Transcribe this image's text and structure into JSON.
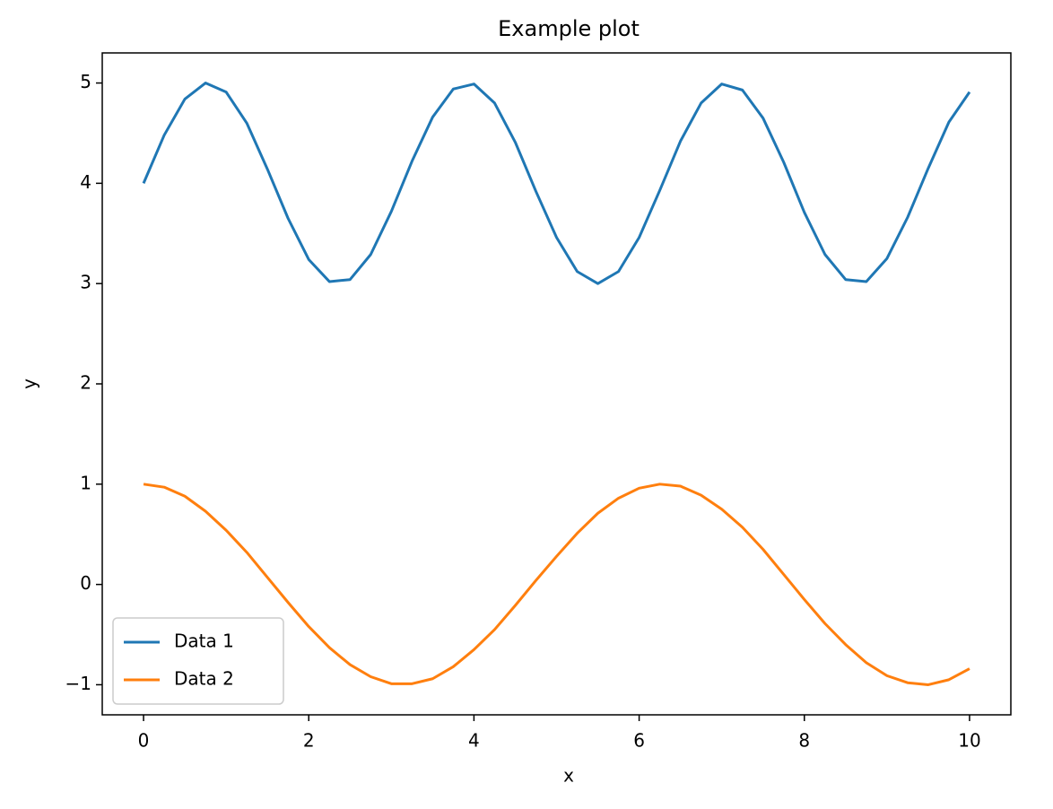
{
  "chart_data": {
    "type": "line",
    "title": "Example plot",
    "x_label": "x",
    "y_label": "y",
    "x": [
      0,
      0.25,
      0.5,
      0.75,
      1,
      1.25,
      1.5,
      1.75,
      2,
      2.25,
      2.5,
      2.75,
      3,
      3.25,
      3.5,
      3.75,
      4,
      4.25,
      4.5,
      4.75,
      5,
      5.25,
      5.5,
      5.75,
      6,
      6.25,
      6.5,
      6.75,
      7,
      7.25,
      7.5,
      7.75,
      8,
      8.25,
      8.5,
      8.75,
      9,
      9.25,
      9.5,
      9.75,
      10
    ],
    "series": [
      {
        "name": "Data 1",
        "color": "#1f77b4",
        "values": [
          4.0,
          4.48,
          4.84,
          5.0,
          4.91,
          4.6,
          4.14,
          3.65,
          3.24,
          3.02,
          3.04,
          3.29,
          3.72,
          4.22,
          4.66,
          4.94,
          4.99,
          4.8,
          4.41,
          3.92,
          3.46,
          3.12,
          3.0,
          3.12,
          3.46,
          3.93,
          4.42,
          4.8,
          4.99,
          4.93,
          4.65,
          4.21,
          3.71,
          3.29,
          3.04,
          3.02,
          3.25,
          3.66,
          4.15,
          4.61,
          4.91
        ]
      },
      {
        "name": "Data 2",
        "color": "#ff7f0e",
        "values": [
          1.0,
          0.97,
          0.88,
          0.73,
          0.54,
          0.32,
          0.07,
          -0.18,
          -0.42,
          -0.63,
          -0.8,
          -0.92,
          -0.99,
          -0.99,
          -0.94,
          -0.82,
          -0.65,
          -0.45,
          -0.21,
          0.04,
          0.28,
          0.51,
          0.71,
          0.86,
          0.96,
          1.0,
          0.98,
          0.89,
          0.75,
          0.57,
          0.35,
          0.1,
          -0.15,
          -0.39,
          -0.6,
          -0.78,
          -0.91,
          -0.98,
          -1.0,
          -0.95,
          -0.84
        ]
      }
    ],
    "xlim": [
      -0.5,
      10.5
    ],
    "xticks": [
      0,
      2,
      4,
      6,
      8,
      10
    ],
    "ylim": [
      -1.3,
      5.3
    ],
    "yticks": [
      {
        "value": -1,
        "label": "−1"
      },
      0,
      1,
      2,
      3,
      4,
      5
    ],
    "legend": "lower left",
    "grid": false
  }
}
